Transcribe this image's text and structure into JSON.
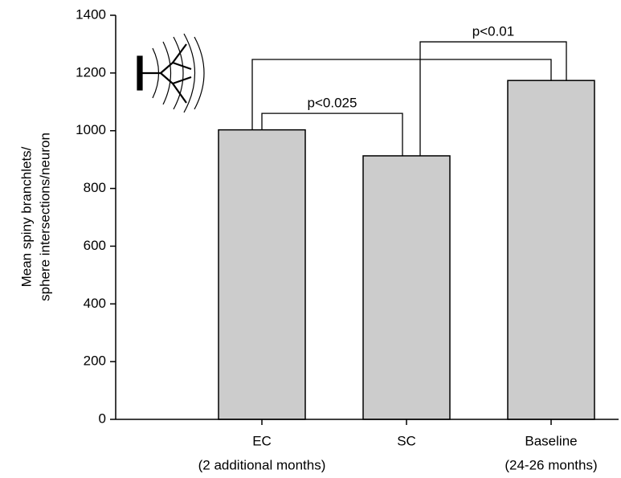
{
  "chart_data": {
    "type": "bar",
    "y_label": [
      "Mean spiny branchlets/",
      "sphere intersections/neuron"
    ],
    "categories": [
      "EC",
      "SC",
      "Baseline"
    ],
    "category_notes": [
      "(2 additional months)",
      null,
      "(24-26 months)"
    ],
    "values": [
      1003,
      913,
      1174
    ],
    "color": "#cccccc",
    "ylim": [
      0,
      1400
    ],
    "yticks": [
      0,
      200,
      400,
      600,
      800,
      1000,
      1200,
      1400
    ],
    "brackets": [
      {
        "from": 0,
        "to": 1,
        "y": 1060,
        "label": "p<0.025"
      },
      {
        "from": 0,
        "to": 2,
        "y": 1247
      },
      {
        "from": 1,
        "to": 2,
        "y": 1308,
        "label": "p<0.01"
      }
    ]
  }
}
